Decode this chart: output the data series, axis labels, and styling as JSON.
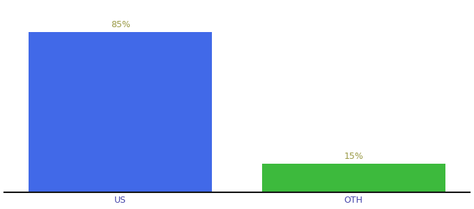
{
  "categories": [
    "US",
    "OTH"
  ],
  "values": [
    85,
    15
  ],
  "bar_colors": [
    "#4169e8",
    "#3dba3d"
  ],
  "label_color": "#999944",
  "label_fontsize": 9,
  "tick_fontsize": 9,
  "tick_color": "#4444aa",
  "background_color": "#ffffff",
  "bar_width": 0.55,
  "x_positions": [
    0.35,
    1.05
  ],
  "xlim": [
    0.0,
    1.4
  ],
  "ylim": [
    0,
    100
  ],
  "label_format": [
    "85%",
    "15%"
  ]
}
